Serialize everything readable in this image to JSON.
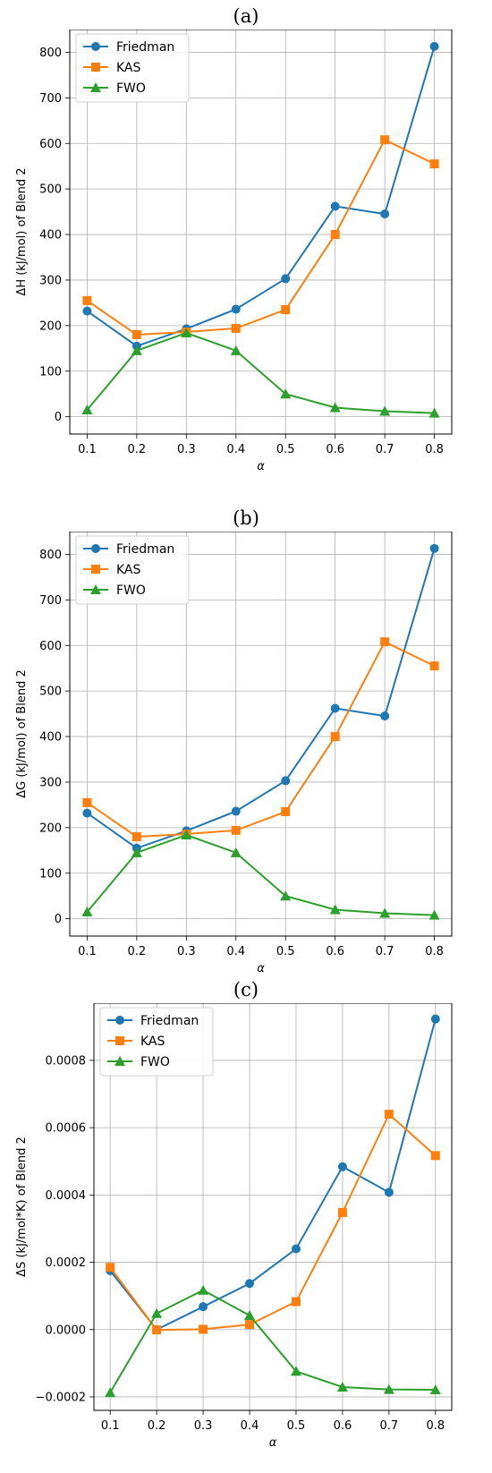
{
  "chart_data": [
    {
      "panel": "(a)",
      "type": "line",
      "ylabel": "ΔH (kJ/mol) of Blend 2",
      "xlabel": "α",
      "x": [
        0.1,
        0.2,
        0.3,
        0.4,
        0.5,
        0.6,
        0.7,
        0.8
      ],
      "xticks": [
        "0.1",
        "0.2",
        "0.3",
        "0.4",
        "0.5",
        "0.6",
        "0.7",
        "0.8"
      ],
      "ylim": [
        -38,
        850
      ],
      "yticks": [
        0,
        100,
        200,
        300,
        400,
        500,
        600,
        700,
        800
      ],
      "ytick_labels": [
        "0",
        "100",
        "200",
        "300",
        "400",
        "500",
        "600",
        "700",
        "800"
      ],
      "legend": "top-left",
      "grid": true,
      "series": [
        {
          "name": "Friedman",
          "color": "#1f77b4",
          "marker": "circle",
          "values": [
            232,
            155,
            193,
            236,
            303,
            462,
            445,
            813
          ]
        },
        {
          "name": "KAS",
          "color": "#ff7f0e",
          "marker": "square",
          "values": [
            255,
            180,
            186,
            194,
            235,
            400,
            608,
            555
          ]
        },
        {
          "name": "FWO",
          "color": "#2ca02c",
          "marker": "triangle",
          "values": [
            15,
            145,
            184,
            145,
            50,
            20,
            12,
            8
          ]
        }
      ]
    },
    {
      "panel": "(b)",
      "type": "line",
      "ylabel": "ΔG (kJ/mol) of Blend 2",
      "xlabel": "α",
      "x": [
        0.1,
        0.2,
        0.3,
        0.4,
        0.5,
        0.6,
        0.7,
        0.8
      ],
      "xticks": [
        "0.1",
        "0.2",
        "0.3",
        "0.4",
        "0.5",
        "0.6",
        "0.7",
        "0.8"
      ],
      "ylim": [
        -38,
        850
      ],
      "yticks": [
        0,
        100,
        200,
        300,
        400,
        500,
        600,
        700,
        800
      ],
      "ytick_labels": [
        "0",
        "100",
        "200",
        "300",
        "400",
        "500",
        "600",
        "700",
        "800"
      ],
      "legend": "top-left",
      "grid": true,
      "series": [
        {
          "name": "Friedman",
          "color": "#1f77b4",
          "marker": "circle",
          "values": [
            232,
            155,
            193,
            236,
            303,
            462,
            445,
            813
          ]
        },
        {
          "name": "KAS",
          "color": "#ff7f0e",
          "marker": "square",
          "values": [
            255,
            180,
            186,
            194,
            235,
            400,
            608,
            555
          ]
        },
        {
          "name": "FWO",
          "color": "#2ca02c",
          "marker": "triangle",
          "values": [
            15,
            145,
            184,
            145,
            50,
            20,
            12,
            8
          ]
        }
      ]
    },
    {
      "panel": "(c)",
      "type": "line",
      "ylabel": "ΔS (kJ/mol*K) of Blend 2",
      "xlabel": "α",
      "x": [
        0.1,
        0.2,
        0.3,
        0.4,
        0.5,
        0.6,
        0.7,
        0.8
      ],
      "xticks": [
        "0.1",
        "0.2",
        "0.3",
        "0.4",
        "0.5",
        "0.6",
        "0.7",
        "0.8"
      ],
      "ylim": [
        -0.00024,
        0.00097
      ],
      "yticks": [
        -0.0002,
        0,
        0.0002,
        0.0004,
        0.0006,
        0.0008
      ],
      "ytick_labels": [
        "−0.0002",
        "0.0000",
        "0.0002",
        "0.0004",
        "0.0006",
        "0.0008"
      ],
      "legend": "top-left",
      "grid": true,
      "series": [
        {
          "name": "Friedman",
          "color": "#1f77b4",
          "marker": "circle",
          "values": [
            0.000175,
            0.0,
            6.8e-05,
            0.000137,
            0.00024,
            0.000484,
            0.000408,
            0.000923
          ]
        },
        {
          "name": "KAS",
          "color": "#ff7f0e",
          "marker": "square",
          "values": [
            0.000185,
            -1e-06,
            1e-06,
            1.5e-05,
            8.3e-05,
            0.000348,
            0.00064,
            0.000517
          ]
        },
        {
          "name": "FWO",
          "color": "#2ca02c",
          "marker": "triangle",
          "values": [
            -0.000187,
            4.8e-05,
            0.000117,
            4.2e-05,
            -0.000124,
            -0.000171,
            -0.000178,
            -0.000179
          ]
        }
      ]
    }
  ]
}
